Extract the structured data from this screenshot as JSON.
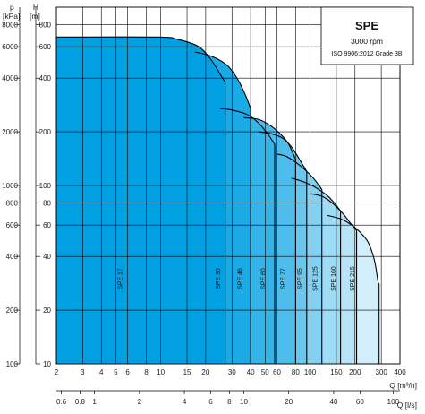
{
  "chart_data": {
    "type": "area",
    "title": "SPE",
    "info_lines": [
      "3000 rpm",
      "ISO 9906:2012 Grade 3B"
    ],
    "axes": {
      "h": {
        "label": "H",
        "unit": "[m]",
        "scale": "log",
        "range": [
          10,
          1000
        ],
        "ticks": [
          10,
          20,
          40,
          60,
          80,
          100,
          200,
          400,
          600,
          800
        ]
      },
      "p": {
        "label": "p",
        "unit": "[kPa]",
        "scale": "log",
        "ticks": [
          100,
          200,
          400,
          600,
          800,
          1000,
          2000,
          4000,
          6000,
          8000
        ]
      },
      "q_m3h": {
        "label": "Q [m³/h]",
        "scale": "log",
        "range": [
          2,
          400
        ],
        "ticks": [
          2,
          3,
          4,
          5,
          6,
          8,
          10,
          15,
          20,
          30,
          40,
          50,
          60,
          80,
          100,
          150,
          200,
          300,
          400
        ]
      },
      "q_ls": {
        "label": "Q [l/s]",
        "scale": "log",
        "ticks": [
          0.6,
          0.8,
          1,
          2,
          4,
          6,
          8,
          10,
          20,
          40,
          60,
          100
        ]
      }
    },
    "grid": true,
    "colors": {
      "light": "#d2eefb",
      "dark": "#00a0e3",
      "outline": "#000000",
      "grid": "#000000"
    },
    "series": [
      {
        "name": "SPE 17",
        "q_max": 27,
        "label_q": 5.5,
        "h_flat": 680,
        "knee_q": 9.5,
        "curve": [
          [
            2,
            680
          ],
          [
            9.5,
            680
          ],
          [
            13,
            660
          ],
          [
            18,
            600
          ],
          [
            22,
            500
          ],
          [
            25,
            420
          ],
          [
            27,
            380
          ]
        ]
      },
      {
        "name": "SPE 30",
        "q_max": 40,
        "label_q": 25,
        "h_flat": 560,
        "knee_q": 17,
        "curve": [
          [
            17,
            560
          ],
          [
            22,
            530
          ],
          [
            28,
            470
          ],
          [
            33,
            390
          ],
          [
            37,
            320
          ],
          [
            40,
            270
          ]
        ]
      },
      {
        "name": "SPE 46",
        "q_max": 58,
        "label_q": 35,
        "h_flat": 270,
        "knee_q": 25,
        "curve": [
          [
            25,
            270
          ],
          [
            30,
            265
          ],
          [
            38,
            250
          ],
          [
            45,
            225
          ],
          [
            52,
            195
          ],
          [
            58,
            170
          ]
        ]
      },
      {
        "name": "SPE 60",
        "q_max": 80,
        "label_q": 50,
        "h_flat": 240,
        "knee_q": 36,
        "curve": [
          [
            36,
            240
          ],
          [
            45,
            235
          ],
          [
            55,
            215
          ],
          [
            65,
            190
          ],
          [
            72,
            170
          ],
          [
            80,
            140
          ]
        ]
      },
      {
        "name": "SPE 77",
        "q_max": 95,
        "label_q": 68,
        "h_flat": 200,
        "knee_q": 45,
        "curve": [
          [
            45,
            200
          ],
          [
            55,
            195
          ],
          [
            65,
            185
          ],
          [
            75,
            165
          ],
          [
            85,
            140
          ],
          [
            95,
            120
          ]
        ]
      },
      {
        "name": "SPE 95",
        "q_max": 120,
        "label_q": 88,
        "h_flat": 150,
        "knee_q": 60,
        "curve": [
          [
            60,
            150
          ],
          [
            70,
            145
          ],
          [
            85,
            130
          ],
          [
            100,
            115
          ],
          [
            110,
            105
          ],
          [
            120,
            95
          ]
        ]
      },
      {
        "name": "SPE 125",
        "q_max": 160,
        "label_q": 112,
        "h_flat": 110,
        "knee_q": 75,
        "curve": [
          [
            75,
            110
          ],
          [
            90,
            105
          ],
          [
            110,
            97
          ],
          [
            130,
            88
          ],
          [
            145,
            80
          ],
          [
            160,
            72
          ]
        ]
      },
      {
        "name": "SPE 160",
        "q_max": 205,
        "label_q": 148,
        "h_flat": 90,
        "knee_q": 100,
        "curve": [
          [
            100,
            90
          ],
          [
            120,
            87
          ],
          [
            140,
            80
          ],
          [
            165,
            70
          ],
          [
            185,
            62
          ],
          [
            205,
            56
          ]
        ]
      },
      {
        "name": "SPE 215",
        "q_max": 290,
        "label_q": 198,
        "h_flat": 68,
        "knee_q": 130,
        "curve": [
          [
            130,
            68
          ],
          [
            160,
            65
          ],
          [
            190,
            60
          ],
          [
            215,
            55
          ],
          [
            245,
            48
          ],
          [
            270,
            38
          ],
          [
            285,
            29
          ],
          [
            290,
            28
          ]
        ]
      }
    ]
  }
}
